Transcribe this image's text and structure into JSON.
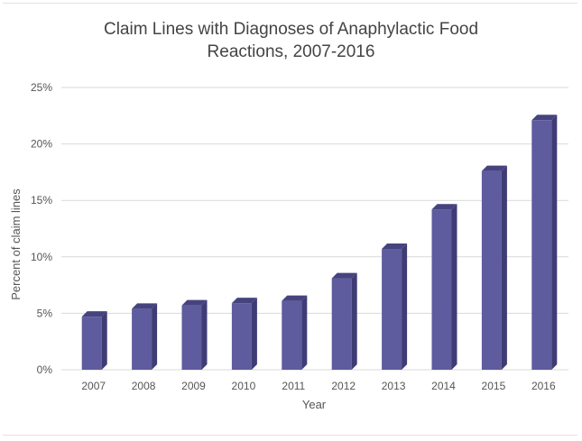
{
  "chart_data": {
    "type": "bar",
    "title_lines": [
      "Claim Lines with Diagnoses of Anaphylactic Food",
      "Reactions, 2007-2016"
    ],
    "xlabel": "Year",
    "ylabel": "Percent of claim lines",
    "categories": [
      "2007",
      "2008",
      "2009",
      "2010",
      "2011",
      "2012",
      "2013",
      "2014",
      "2015",
      "2016"
    ],
    "values": [
      4.7,
      5.4,
      5.7,
      5.9,
      6.1,
      8.1,
      10.7,
      14.2,
      17.6,
      22.1
    ],
    "ylim": [
      0,
      25
    ],
    "yticks": [
      "0%",
      "5%",
      "10%",
      "15%",
      "20%",
      "25%"
    ],
    "grid": true,
    "legend": "none",
    "colors": {
      "bar_front": "#5e5b9e",
      "bar_side": "#3f3c75",
      "bar_top": "#46437f",
      "grid": "#d9d9d9"
    }
  }
}
